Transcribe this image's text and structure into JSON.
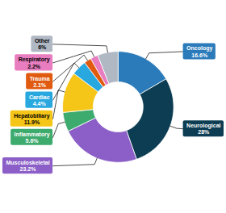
{
  "chart_data": {
    "type": "donut",
    "categories": [
      "Oncology",
      "Neurological",
      "Musculoskeletal",
      "Inflammatory",
      "Hepatobiliary",
      "Cardiac",
      "Trauma",
      "Respiratory",
      "Other"
    ],
    "values": [
      16.6,
      28.0,
      23.2,
      5.6,
      11.9,
      4.4,
      2.1,
      2.2,
      6.0
    ],
    "value_labels": [
      "16.6%",
      "28%",
      "23.2%",
      "5.6%",
      "11.9%",
      "4.4%",
      "2.1%",
      "2.2%",
      "6%"
    ],
    "colors": [
      "#2b7bba",
      "#0d3d52",
      "#8b5fc7",
      "#3daa6e",
      "#f5c518",
      "#29a8e0",
      "#e05a10",
      "#e87dbf",
      "#b0b8c4"
    ],
    "data_labels": true
  }
}
